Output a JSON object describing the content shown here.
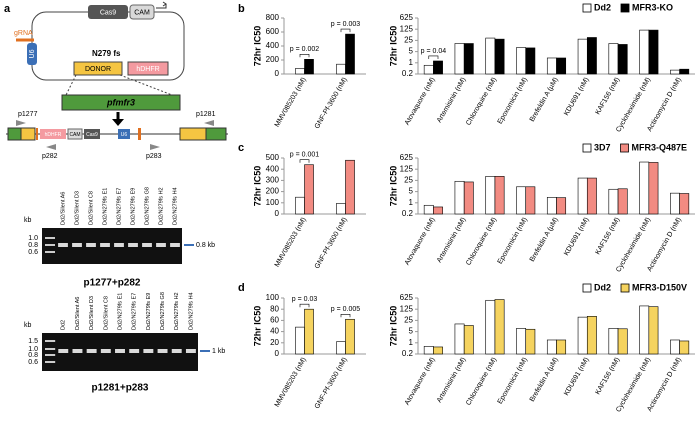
{
  "panel_labels": [
    "a",
    "b",
    "c",
    "d"
  ],
  "diagram": {
    "plasmid": {
      "cas9": "Cas9",
      "cam": "CAM",
      "grna": "gRNA",
      "u6": "U6",
      "mutation": "N279 fs",
      "donor": "DONOR",
      "hdhfr": "hDHFR"
    },
    "gene": "pfmfr3",
    "locus": {
      "hdhfr": "hDHFR",
      "cam": "CAM",
      "cas9": "Cas9",
      "u6": "U6",
      "primers": [
        "p1277",
        "p282",
        "p283",
        "p1281"
      ]
    }
  },
  "gels": [
    {
      "kb": "kb",
      "markers": [
        "1.0",
        "0.8",
        "0.6"
      ],
      "lanes": [
        "Dd2/Silent A6",
        "Dd2/Silent D3",
        "Dd2/Silent C8",
        "Dd2/N279fs E1",
        "Dd2/N279fs E7",
        "Dd2/N279fs E9",
        "Dd2/N279fs G8",
        "Dd2/N279fs H2",
        "Dd2/N279fs H4"
      ],
      "band": "0.8 kb",
      "title": "p1277+p282"
    },
    {
      "kb": "kb",
      "markers": [
        "1.5",
        "1.0",
        "0.8",
        "0.6"
      ],
      "lanes": [
        "Dd2",
        "Dd2/Silent A6",
        "Dd2/Silent D3",
        "Dd2/Silent C8",
        "Dd2/N279fs E1",
        "Dd2/N279fs E7",
        "Dd2/N279fs E9",
        "Dd2/N279fs G8",
        "Dd2/N279fs H2",
        "Dd2/N279fs H4"
      ],
      "band": "1 kb",
      "title": "p1281+p283"
    }
  ],
  "chart_data": [
    {
      "type": "bar",
      "ylabel": "72hr IC50",
      "categories": [
        "MMV085203 (nM)",
        "GNF-Pf-3600 (nM)"
      ],
      "series": [
        {
          "color": "#ffffff",
          "values": [
            80,
            140
          ]
        },
        {
          "color": "#000000",
          "values": [
            210,
            570
          ]
        }
      ],
      "ylim": [
        0,
        800
      ],
      "yticks": [
        0,
        200,
        400,
        600,
        800
      ],
      "annotations": [
        {
          "text": "p = 0.002",
          "category": "MMV085203 (nM)"
        },
        {
          "text": "p = 0.003",
          "category": "GNF-Pf-3600 (nM)"
        }
      ]
    },
    {
      "type": "bar",
      "ylabel": "72hr IC50",
      "log_scale": true,
      "legend": "upper right",
      "categories": [
        "Atovaquone (nM)",
        "Artemisinin (nM)",
        "Chloroquine (nM)",
        "Epoxomicin (nM)",
        "Brefeldin A (µM)",
        "KDU691 (nM)",
        "KAF156 (nM)",
        "Cycloheximide (nM)",
        "Actinomycin D (nM)"
      ],
      "series": [
        {
          "name": "Dd2",
          "color": "#ffffff",
          "values": [
            0.7,
            16,
            35,
            9,
            2,
            30,
            16,
            110,
            0.35
          ]
        },
        {
          "name": "MFR3-KO",
          "color": "#000000",
          "values": [
            1.3,
            16,
            30,
            8.5,
            2,
            38,
            14,
            110,
            0.4
          ]
        }
      ],
      "ylim": [
        0.2,
        625
      ],
      "yticks": [
        0.2,
        1,
        5,
        25,
        125,
        625
      ],
      "annotations": [
        {
          "text": "p = 0.04",
          "category": "Atovaquone (nM)"
        }
      ]
    },
    {
      "type": "bar",
      "ylabel": "72hr IC50",
      "categories": [
        "MMV085203 (nM)",
        "GNF-Pf-3600 (nM)"
      ],
      "series": [
        {
          "color": "#ffffff",
          "values": [
            150,
            95
          ]
        },
        {
          "color": "#f28b82",
          "values": [
            440,
            480
          ]
        }
      ],
      "ylim": [
        0,
        500
      ],
      "yticks": [
        0,
        100,
        200,
        300,
        400,
        500
      ],
      "annotations": [
        {
          "text": "p = 0.001",
          "category": "MMV085203 (nM)"
        }
      ]
    },
    {
      "type": "bar",
      "ylabel": "72hr IC50",
      "log_scale": true,
      "legend": "upper right",
      "categories": [
        "Atovaquone (nM)",
        "Artemisinin (nM)",
        "Chloroquine (nM)",
        "Epoxomicin (nM)",
        "Brefeldin A (µM)",
        "KDU691 (nM)",
        "KAF156 (nM)",
        "Cycloheximide (nM)",
        "Actinomycin D (nM)"
      ],
      "series": [
        {
          "name": "3D7",
          "color": "#ffffff",
          "values": [
            0.7,
            22,
            45,
            10,
            2.2,
            35,
            7,
            350,
            4
          ]
        },
        {
          "name": "MFR3-Q487E",
          "color": "#f28b82",
          "values": [
            0.55,
            20,
            45,
            10,
            2.1,
            35,
            7.5,
            330,
            3.8
          ]
        }
      ],
      "ylim": [
        0.2,
        625
      ],
      "yticks": [
        0.2,
        1,
        5,
        25,
        125,
        625
      ]
    },
    {
      "type": "bar",
      "ylabel": "72hr IC50",
      "categories": [
        "MMV085203 (nM)",
        "GNF-Pf-3600 (nM)"
      ],
      "series": [
        {
          "color": "#ffffff",
          "values": [
            48,
            22
          ]
        },
        {
          "color": "#f5d35f",
          "values": [
            80,
            62
          ]
        }
      ],
      "ylim": [
        0,
        100
      ],
      "yticks": [
        0,
        20,
        40,
        60,
        80,
        100
      ],
      "annotations": [
        {
          "text": "p = 0.03",
          "category": "MMV085203 (nM)"
        },
        {
          "text": "p = 0.005",
          "category": "GNF-Pf-3600 (nM)"
        }
      ]
    },
    {
      "type": "bar",
      "ylabel": "72hr IC50",
      "log_scale": true,
      "legend": "upper right",
      "categories": [
        "Atovaquone (nM)",
        "Artemisinin (nM)",
        "Chloroquine (nM)",
        "Epoxomicin (nM)",
        "Brefeldin A (µM)",
        "KDU691 (nM)",
        "KAF156 (nM)",
        "Cycloheximide (nM)",
        "Actinomycin D (nM)"
      ],
      "series": [
        {
          "name": "Dd2",
          "color": "#ffffff",
          "values": [
            0.6,
            15,
            450,
            8,
            1.5,
            40,
            8,
            200,
            1.5
          ]
        },
        {
          "name": "MFR3-D150V",
          "color": "#f5d35f",
          "values": [
            0.55,
            12,
            500,
            7,
            1.5,
            45,
            7.5,
            180,
            1.3
          ]
        }
      ],
      "ylim": [
        0.2,
        625
      ],
      "yticks": [
        0.2,
        1,
        5,
        25,
        125,
        625
      ]
    }
  ]
}
